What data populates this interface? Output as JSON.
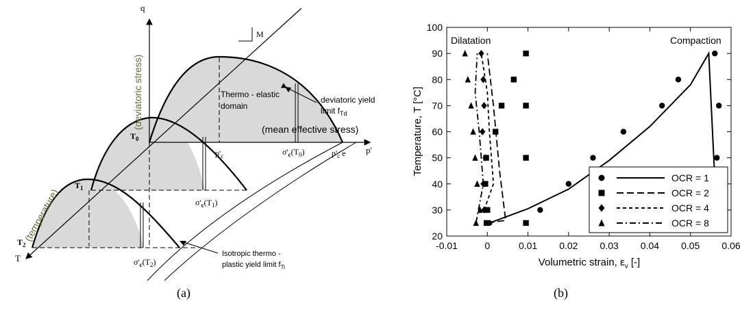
{
  "panel_a": {
    "caption": "(a)",
    "axis_q": "q",
    "axis_p": "p'",
    "axis_T": "T",
    "label_deviatoric": "(deviatoric stress)",
    "label_mean": "(mean effective stress)",
    "label_temperature": "(temperature)",
    "M": "M",
    "T0": "T",
    "T0_sub": "0",
    "T1": "T",
    "T1_sub": "1",
    "T2": "T",
    "T2_sub": "2",
    "pc": "p'",
    "pc_sub": "c",
    "pce": "p'",
    "pce_sub": "c",
    "pce_suffix": " e",
    "sig": "σ'",
    "sig_sub": "c",
    "sig_T0": "(T",
    "sig_T0_sub": "0",
    "sig_T1": "(T",
    "sig_T1_sub": "1",
    "sig_T2": "(T",
    "sig_T2_sub": "2",
    "close": ")",
    "elastic_1": "Thermo - elastic",
    "elastic_2": "domain",
    "dev_1": "deviatoric yield",
    "dev_2": "limit f",
    "dev_2_sub": "Td",
    "iso_1": "Isotropic thermo -",
    "iso_2": "plastic yield limit f",
    "iso_2_sub": "Ti"
  },
  "panel_b": {
    "caption": "(b)"
  },
  "chart_data": {
    "type": "scatter",
    "xlabel": "Volumetric strain, ε",
    "xlabel_sub": "v",
    "xlabel_suffix": " [-]",
    "ylabel": "Temperature, T [°C]",
    "xlim": [
      -0.01,
      0.06
    ],
    "ylim": [
      20,
      100
    ],
    "xticks": [
      -0.01,
      0,
      0.01,
      0.02,
      0.03,
      0.04,
      0.05,
      0.06
    ],
    "xtick_labels": [
      "-0.01",
      "0",
      "0.01",
      "0.02",
      "0.03",
      "0.04",
      "0.05",
      "0.06"
    ],
    "yticks": [
      20,
      30,
      40,
      50,
      60,
      70,
      80,
      90,
      100
    ],
    "ytick_labels": [
      "20",
      "30",
      "40",
      "50",
      "60",
      "70",
      "80",
      "90",
      "100"
    ],
    "grid": false,
    "legend_position": "bottom-right",
    "annotations": [
      "Dilatation",
      "Compaction"
    ],
    "series": [
      {
        "name": "OCR = 1",
        "marker": "circle",
        "line": "solid",
        "points": [
          [
            0.0005,
            25
          ],
          [
            0.013,
            30
          ],
          [
            0.02,
            40
          ],
          [
            0.026,
            50
          ],
          [
            0.0335,
            60
          ],
          [
            0.043,
            70
          ],
          [
            0.047,
            80
          ],
          [
            0.056,
            90
          ],
          [
            0.057,
            70
          ],
          [
            0.0565,
            50
          ],
          [
            0.0565,
            25
          ]
        ],
        "curve": [
          [
            0.0005,
            25
          ],
          [
            0.01,
            30.5
          ],
          [
            0.02,
            38
          ],
          [
            0.03,
            49
          ],
          [
            0.04,
            62
          ],
          [
            0.05,
            78
          ],
          [
            0.0545,
            90
          ],
          [
            0.0565,
            25
          ]
        ]
      },
      {
        "name": "OCR = 2",
        "marker": "square",
        "line": "long-dash",
        "points": [
          [
            0.0095,
            90
          ],
          [
            0.0065,
            80
          ],
          [
            0.0095,
            70
          ],
          [
            0.0035,
            70
          ],
          [
            0.002,
            60
          ],
          [
            0.0095,
            50
          ],
          [
            -0.0003,
            50
          ],
          [
            -0.0005,
            40
          ],
          [
            0.0,
            30
          ],
          [
            -0.0002,
            25
          ],
          [
            0.0095,
            25
          ]
        ],
        "curve": [
          [
            0.0,
            25
          ],
          [
            0.0045,
            26
          ],
          [
            0.003,
            45
          ],
          [
            0.0015,
            70
          ],
          [
            0.0,
            90
          ]
        ]
      },
      {
        "name": "OCR = 4",
        "marker": "diamond",
        "line": "short-dash",
        "points": [
          [
            -0.0015,
            90
          ],
          [
            -0.001,
            80
          ],
          [
            -0.0008,
            70
          ],
          [
            -0.0012,
            60
          ],
          [
            -0.0005,
            50
          ],
          [
            -0.001,
            40
          ],
          [
            -0.0008,
            30
          ]
        ],
        "curve": [
          [
            -0.0008,
            30
          ],
          [
            0.0015,
            40
          ],
          [
            0.0005,
            60
          ],
          [
            0.0,
            75
          ],
          [
            -0.0015,
            90
          ]
        ]
      },
      {
        "name": "OCR = 8",
        "marker": "triangle",
        "line": "dash-dot",
        "points": [
          [
            -0.0055,
            90
          ],
          [
            -0.0048,
            80
          ],
          [
            -0.004,
            70
          ],
          [
            -0.0035,
            60
          ],
          [
            -0.003,
            50
          ],
          [
            -0.0025,
            40
          ],
          [
            -0.0018,
            30
          ],
          [
            -0.0028,
            25
          ]
        ],
        "curve": [
          [
            -0.0028,
            25
          ],
          [
            -0.001,
            40
          ],
          [
            -0.002,
            60
          ],
          [
            -0.003,
            75
          ],
          [
            -0.0025,
            90
          ]
        ]
      }
    ]
  }
}
